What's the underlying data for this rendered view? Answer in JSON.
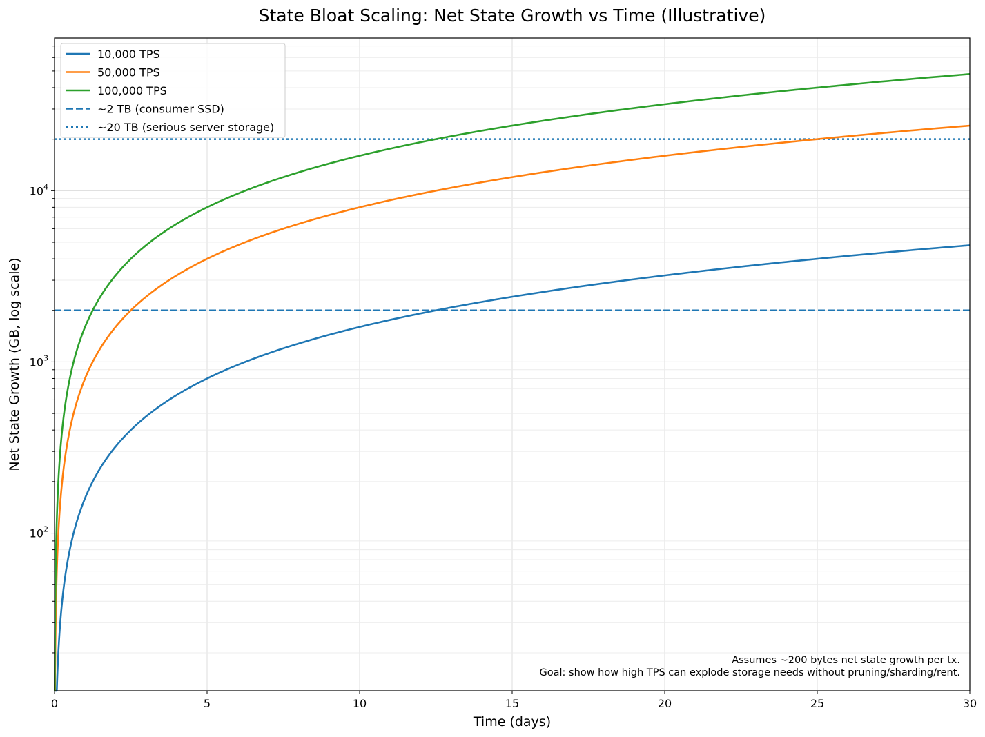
{
  "chart_data": {
    "type": "line",
    "title": "State Bloat Scaling: Net State Growth vs Time (Illustrative)",
    "xlabel": "Time (days)",
    "ylabel": "Net State Growth (GB, log scale)",
    "xlim": [
      0,
      30
    ],
    "ylim": [
      12,
      78000
    ],
    "yscale": "log",
    "grid": true,
    "legend_position": "top-left",
    "x_ticks": [
      0,
      5,
      10,
      15,
      20,
      25,
      30
    ],
    "y_ticks": [
      {
        "value": 100,
        "base": "10",
        "exp": "2"
      },
      {
        "value": 1000,
        "base": "10",
        "exp": "3"
      },
      {
        "value": 10000,
        "base": "10",
        "exp": "4"
      }
    ],
    "series": [
      {
        "name": "10,000 TPS",
        "gb_per_day": 160,
        "color": "#1f77b4",
        "style": "solid"
      },
      {
        "name": "50,000 TPS",
        "gb_per_day": 800,
        "color": "#ff7f0e",
        "style": "solid"
      },
      {
        "name": "100,000 TPS",
        "gb_per_day": 1600,
        "color": "#2ca02c",
        "style": "solid"
      }
    ],
    "reference_lines": [
      {
        "name": "~2 TB (consumer SSD)",
        "value": 2000,
        "color": "#1f77b4",
        "style": "dashed"
      },
      {
        "name": "~20 TB (serious server storage)",
        "value": 20000,
        "color": "#1f77b4",
        "style": "dotted"
      }
    ],
    "annotations": [
      "Assumes ~200 bytes net state growth per tx.",
      "Goal: show how high TPS can explode storage needs without pruning/sharding/rent."
    ]
  }
}
